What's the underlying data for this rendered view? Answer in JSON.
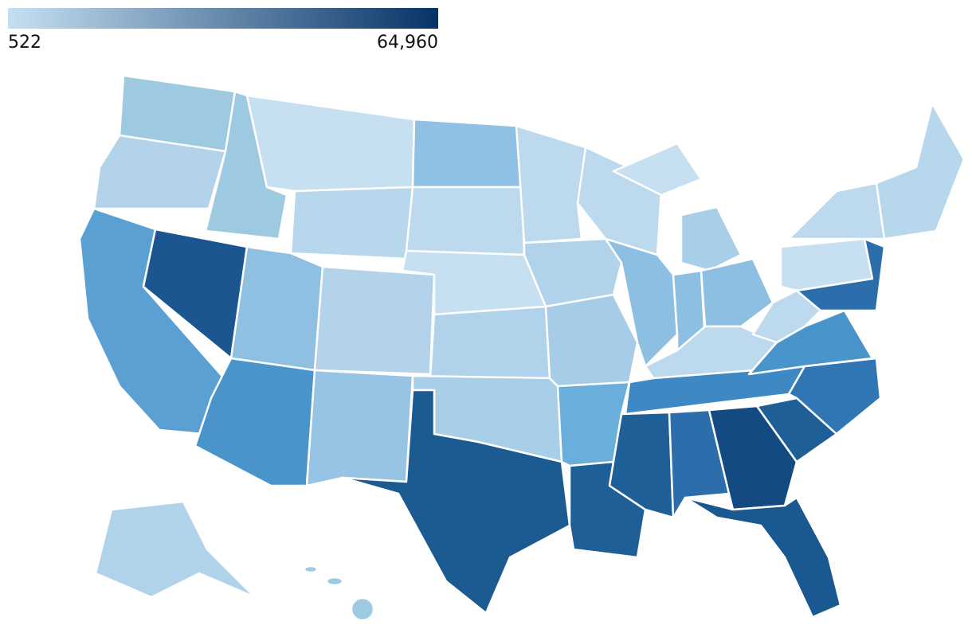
{
  "chart_data": {
    "type": "choropleth",
    "colorbar": {
      "ticks": [
        522,
        {
          "value": 64960,
          "label": "64,960"
        }
      ],
      "colors": [
        "#c6e0f2",
        "#063366"
      ]
    }
  }
}
